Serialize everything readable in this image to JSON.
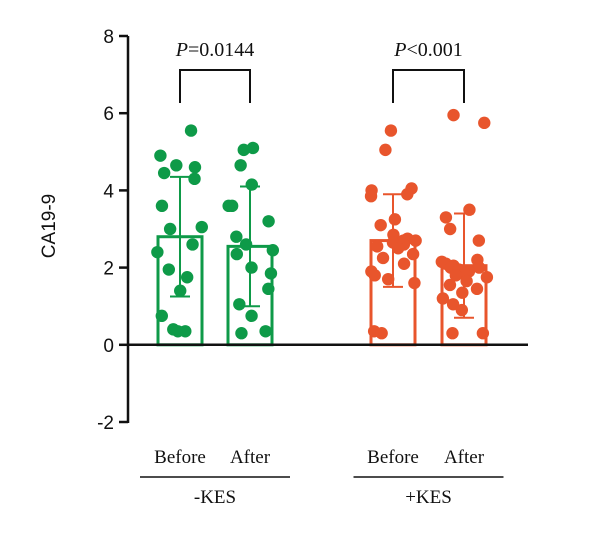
{
  "chart_data": {
    "type": "bar",
    "ylabel": "CA19-9",
    "ylim": [
      -2,
      8
    ],
    "yticks": [
      -2,
      0,
      2,
      4,
      6,
      8
    ],
    "categories": [
      "Before",
      "After",
      "Before",
      "After"
    ],
    "groups": [
      {
        "label": "-KES",
        "categories": [
          0,
          1
        ],
        "color": "#0E9A48"
      },
      {
        "label": "+KES",
        "categories": [
          2,
          3
        ],
        "color": "#E8552C"
      }
    ],
    "series": [
      {
        "group": "-KES",
        "category": "Before",
        "mean": 2.8,
        "sd": 1.55,
        "points": [
          5.55,
          4.9,
          4.65,
          4.6,
          4.45,
          4.3,
          3.6,
          3.05,
          3.0,
          2.6,
          2.4,
          1.95,
          1.75,
          1.4,
          0.75,
          0.4,
          0.35,
          0.35
        ]
      },
      {
        "group": "-KES",
        "category": "After",
        "mean": 2.55,
        "sd": 1.55,
        "points": [
          5.1,
          5.05,
          4.65,
          4.15,
          3.6,
          3.6,
          3.2,
          2.8,
          2.6,
          2.45,
          2.35,
          2.0,
          1.85,
          1.45,
          1.05,
          0.75,
          0.35,
          0.3
        ]
      },
      {
        "group": "+KES",
        "category": "Before",
        "mean": 2.7,
        "sd": 1.2,
        "points": [
          5.55,
          5.05,
          4.05,
          4.0,
          3.9,
          3.85,
          3.25,
          3.1,
          2.85,
          2.75,
          2.7,
          2.7,
          2.65,
          2.6,
          2.55,
          2.5,
          2.35,
          2.25,
          2.1,
          1.9,
          1.8,
          1.7,
          1.6,
          0.35,
          0.3
        ]
      },
      {
        "group": "+KES",
        "category": "After",
        "mean": 2.05,
        "sd": 1.35,
        "points": [
          5.95,
          5.75,
          3.5,
          3.3,
          3.0,
          2.7,
          2.2,
          2.15,
          2.1,
          2.05,
          2.0,
          2.0,
          1.95,
          1.9,
          1.85,
          1.8,
          1.75,
          1.65,
          1.55,
          1.45,
          1.35,
          1.2,
          1.05,
          0.9,
          0.3,
          0.3
        ]
      }
    ],
    "comparisons": [
      {
        "group": "-KES",
        "p_italic": "P",
        "p_text": "=0.0144"
      },
      {
        "group": "+KES",
        "p_italic": "P",
        "p_text": "<0.001"
      }
    ]
  }
}
